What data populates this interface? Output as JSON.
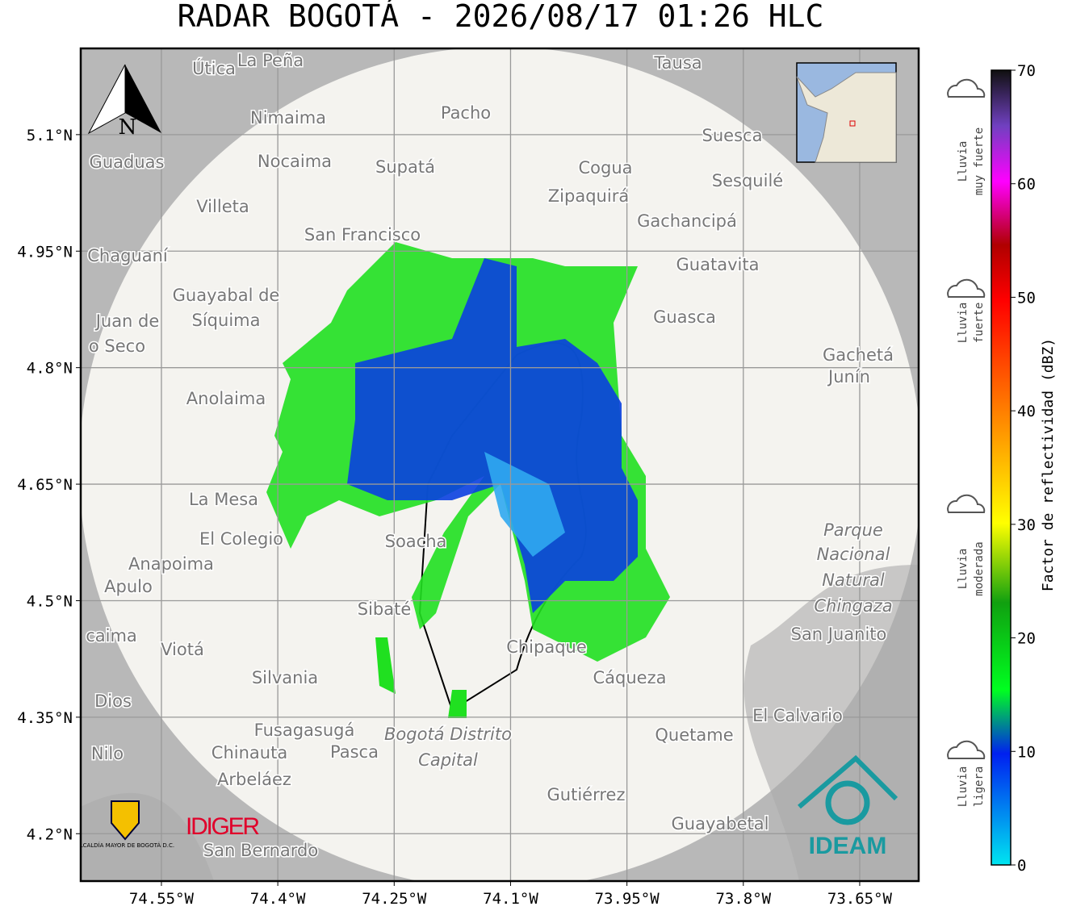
{
  "title": "RADAR BOGOTÁ - 2026/08/17 01:26 HLC",
  "map": {
    "xlim": [
      -74.654,
      -73.574
    ],
    "ylim": [
      4.139,
      5.211
    ],
    "xticks": [
      {
        "value": -74.55,
        "label": "74.55°W"
      },
      {
        "value": -74.4,
        "label": "74.4°W"
      },
      {
        "value": -74.25,
        "label": "74.25°W"
      },
      {
        "value": -74.1,
        "label": "74.1°W"
      },
      {
        "value": -73.95,
        "label": "73.95°W"
      },
      {
        "value": -73.8,
        "label": "73.8°W"
      },
      {
        "value": -73.65,
        "label": "73.65°W"
      }
    ],
    "yticks": [
      {
        "value": 5.1,
        "label": "5.1°N"
      },
      {
        "value": 4.95,
        "label": "4.95°N"
      },
      {
        "value": 4.8,
        "label": "4.8°N"
      },
      {
        "value": 4.65,
        "label": "4.65°N"
      },
      {
        "value": 4.5,
        "label": "4.5°N"
      },
      {
        "value": 4.35,
        "label": "4.35°N"
      },
      {
        "value": 4.2,
        "label": "4.2°N"
      }
    ],
    "grid": true,
    "north_label": "N",
    "places": [
      "Útica",
      "La Peña",
      "Tausa",
      "Pacho",
      "Nimaima",
      "Guaduas",
      "Nocaima",
      "Supatá",
      "Cogua",
      "Suesca",
      "Sesquilé",
      "Zipaquirá",
      "Villeta",
      "Gachancipá",
      "San Francisco",
      "Chaguaní",
      "Guatavita",
      "Guayabal de",
      "Síquima",
      "Guasca",
      "Juan de",
      "o Seco",
      "Gachetá",
      "Junín",
      "Anolaima",
      "La Mesa",
      "Parque",
      "Nacional",
      "Natural",
      "Chingaza",
      "El Colegio",
      "Soacha",
      "Anapoima",
      "Apulo",
      "Sibaté",
      "San Juanito",
      "caima",
      "Viotá",
      "Chipaque",
      "Cáqueza",
      "Silvania",
      "Dios",
      "El Calvario",
      "Fusagasugá",
      "Quetame",
      "Bogotá Distrito",
      "Capital",
      "Nilo",
      "Chinauta",
      "Pasca",
      "Arbeláez",
      "Gutiérrez",
      "Guayabetal",
      "San Bernardo"
    ]
  },
  "logos": {
    "alcaldia": "ALCALDÍA MAYOR DE BOGOTÁ D.C.",
    "idiger": "IDIGER",
    "ideam": "IDEAM"
  },
  "colorbar": {
    "label": "Factor de reflectividad (dBZ)",
    "lim": [
      0,
      70
    ],
    "ticks": [
      0,
      10,
      20,
      30,
      40,
      50,
      60,
      70
    ],
    "rain_levels": [
      [
        "Lluvia",
        "ligera"
      ],
      [
        "Lluvia",
        "moderada"
      ],
      [
        "Lluvia",
        "fuerte"
      ],
      [
        "Lluvia",
        "muy fuerte"
      ]
    ]
  }
}
